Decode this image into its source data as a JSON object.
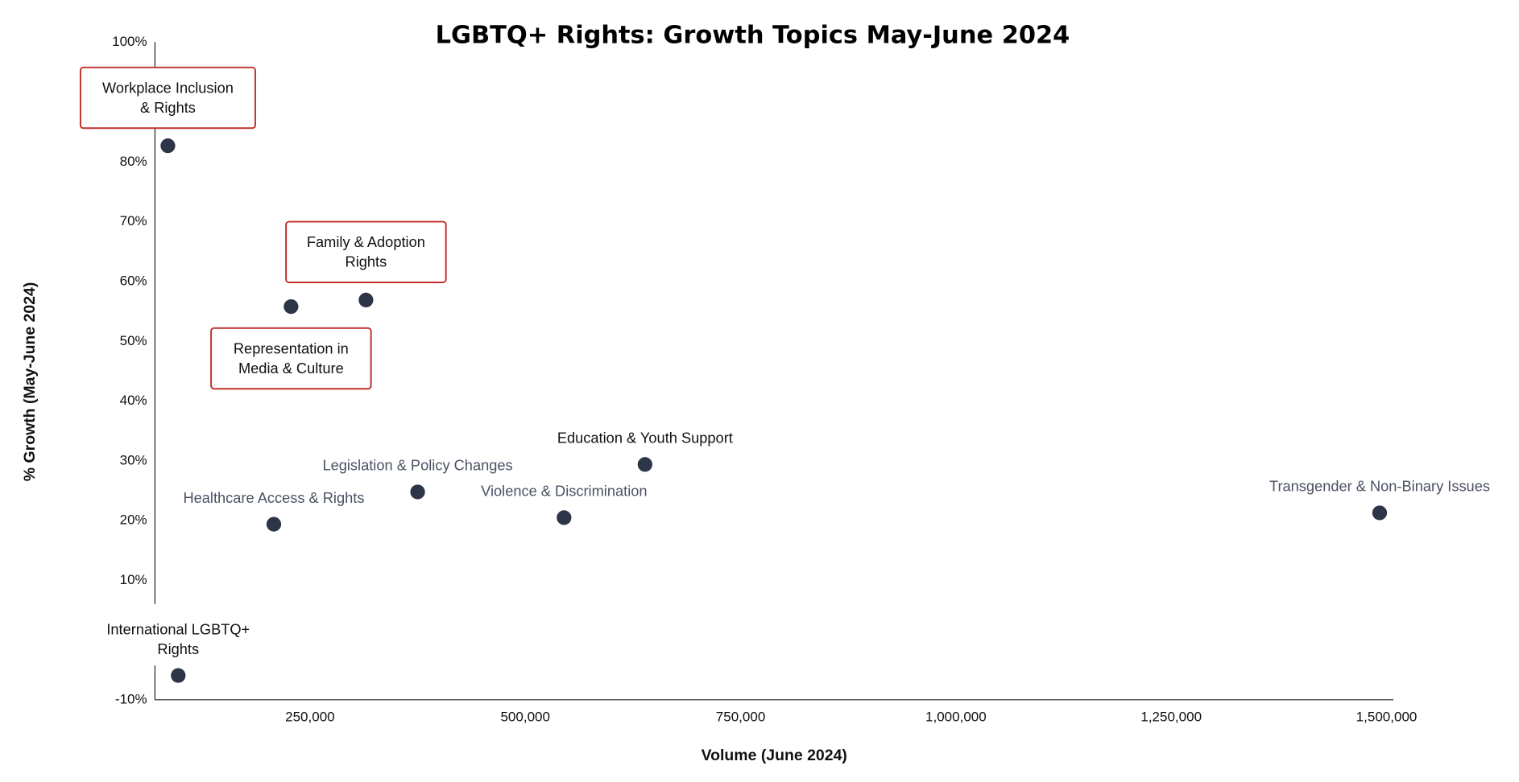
{
  "chart_data": {
    "type": "scatter",
    "title": "LGBTQ+ Rights: Growth Topics May-June 2024",
    "xlabel": "Volume (June 2024)",
    "ylabel": "% Growth (May-June 2024)",
    "xlim": [
      70000,
      1508000
    ],
    "ylim": [
      -10,
      100
    ],
    "x_ticks": [
      250000,
      500000,
      750000,
      1000000,
      1250000,
      1500000
    ],
    "x_tick_labels": [
      "250,000",
      "500,000",
      "750,000",
      "1,000,000",
      "1,250,000",
      "1,500,000"
    ],
    "y_ticks": [
      100,
      80,
      70,
      60,
      50,
      40,
      30,
      20,
      10,
      -10
    ],
    "y_tick_labels": [
      "100%",
      "80%",
      "70%",
      "60%",
      "50%",
      "40%",
      "30%",
      "20%",
      "10%",
      "-10%"
    ],
    "grid": false,
    "point_color": "#2d3548",
    "highlight_color": "#c0302a",
    "points": [
      {
        "label": [
          "Workplace Inclusion",
          "& Rights"
        ],
        "x": 85000,
        "y": 82.5,
        "highlight": true,
        "label_color": "#111111"
      },
      {
        "label": [
          "Representation in",
          "Media & Culture"
        ],
        "x": 228000,
        "y": 55.6,
        "highlight": true,
        "label_color": "#111111"
      },
      {
        "label": [
          "Family & Adoption",
          "Rights"
        ],
        "x": 315000,
        "y": 56.7,
        "highlight": true,
        "label_color": "#111111"
      },
      {
        "label": [
          "Education & Youth Support"
        ],
        "x": 639000,
        "y": 29.2,
        "highlight": false,
        "label_color": "#111111"
      },
      {
        "label": [
          "Legislation & Policy Changes"
        ],
        "x": 375000,
        "y": 24.6,
        "highlight": false,
        "label_color": "#4a5163"
      },
      {
        "label": [
          "Violence & Discrimination"
        ],
        "x": 545000,
        "y": 20.3,
        "highlight": false,
        "label_color": "#4a5163"
      },
      {
        "label": [
          "Healthcare Access & Rights"
        ],
        "x": 208000,
        "y": 19.2,
        "highlight": false,
        "label_color": "#4a5163"
      },
      {
        "label": [
          "Transgender & Non-Binary Issues"
        ],
        "x": 1492000,
        "y": 21.1,
        "highlight": false,
        "label_color": "#4a5163"
      },
      {
        "label": [
          "International LGBTQ+",
          "Rights"
        ],
        "x": 97000,
        "y": -6.1,
        "highlight": false,
        "label_color": "#111111"
      }
    ]
  }
}
